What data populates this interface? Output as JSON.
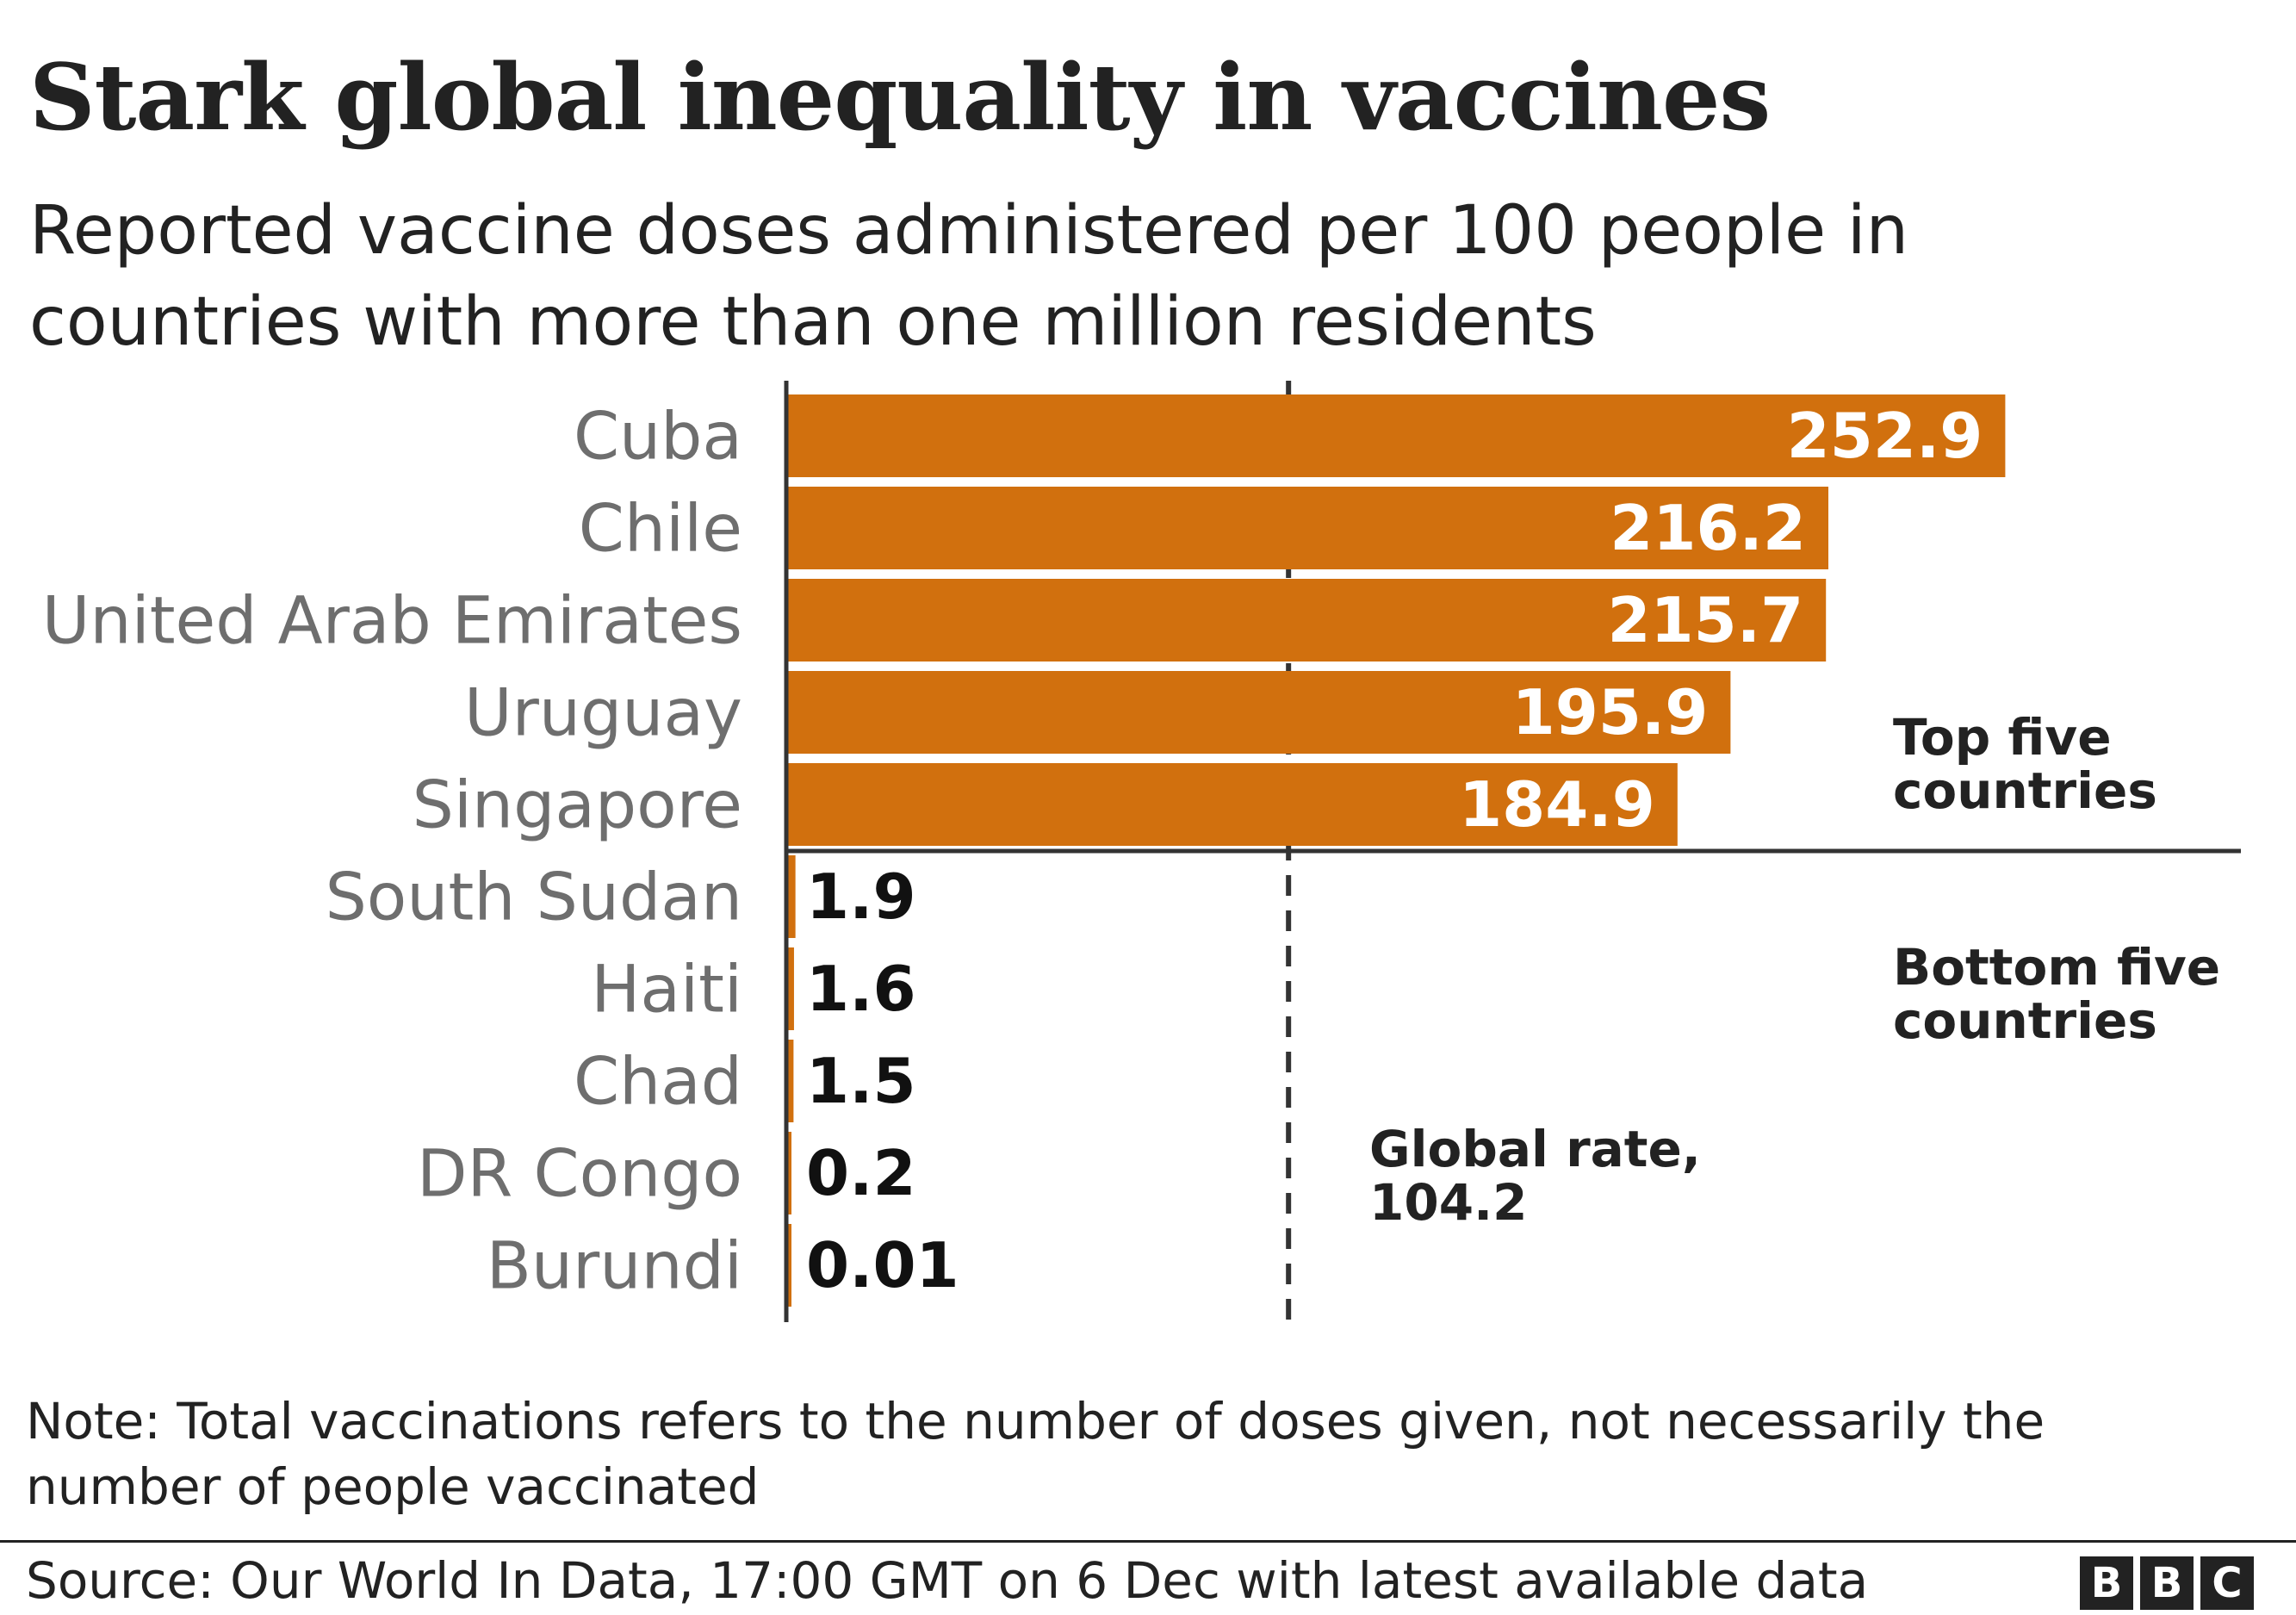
{
  "title": "Stark global inequality in vaccines",
  "subtitle": "Reported vaccine doses administered per 100 people in countries with more than one million residents",
  "note": "Note: Total vaccinations refers to the number of doses given, not necessarily the number of people vaccinated",
  "source": "Source: Our World In Data, 17:00 GMT on 6 Dec with latest available data",
  "logo": [
    "B",
    "B",
    "C"
  ],
  "chart_data": {
    "type": "bar",
    "orientation": "horizontal",
    "categories": [
      "Cuba",
      "Chile",
      "United Arab Emirates",
      "Uruguay",
      "Singapore",
      "South Sudan",
      "Haiti",
      "Chad",
      "DR Congo",
      "Burundi"
    ],
    "values": [
      252.9,
      216.2,
      215.7,
      195.9,
      184.9,
      1.9,
      1.6,
      1.5,
      0.2,
      0.01
    ],
    "value_labels": [
      "252.9",
      "216.2",
      "215.7",
      "195.9",
      "184.9",
      "1.9",
      "1.6",
      "1.5",
      "0.2",
      "0.01"
    ],
    "xlim": [
      0,
      305
    ],
    "bar_color": "#d1700e",
    "groups": [
      {
        "label_lines": [
          "Top five",
          "countries"
        ],
        "count": 5
      },
      {
        "label_lines": [
          "Bottom five",
          "countries"
        ],
        "count": 5
      }
    ],
    "reference_line": {
      "value": 104.2,
      "label_lines": [
        "Global rate,",
        "104.2"
      ]
    },
    "grid": false
  }
}
